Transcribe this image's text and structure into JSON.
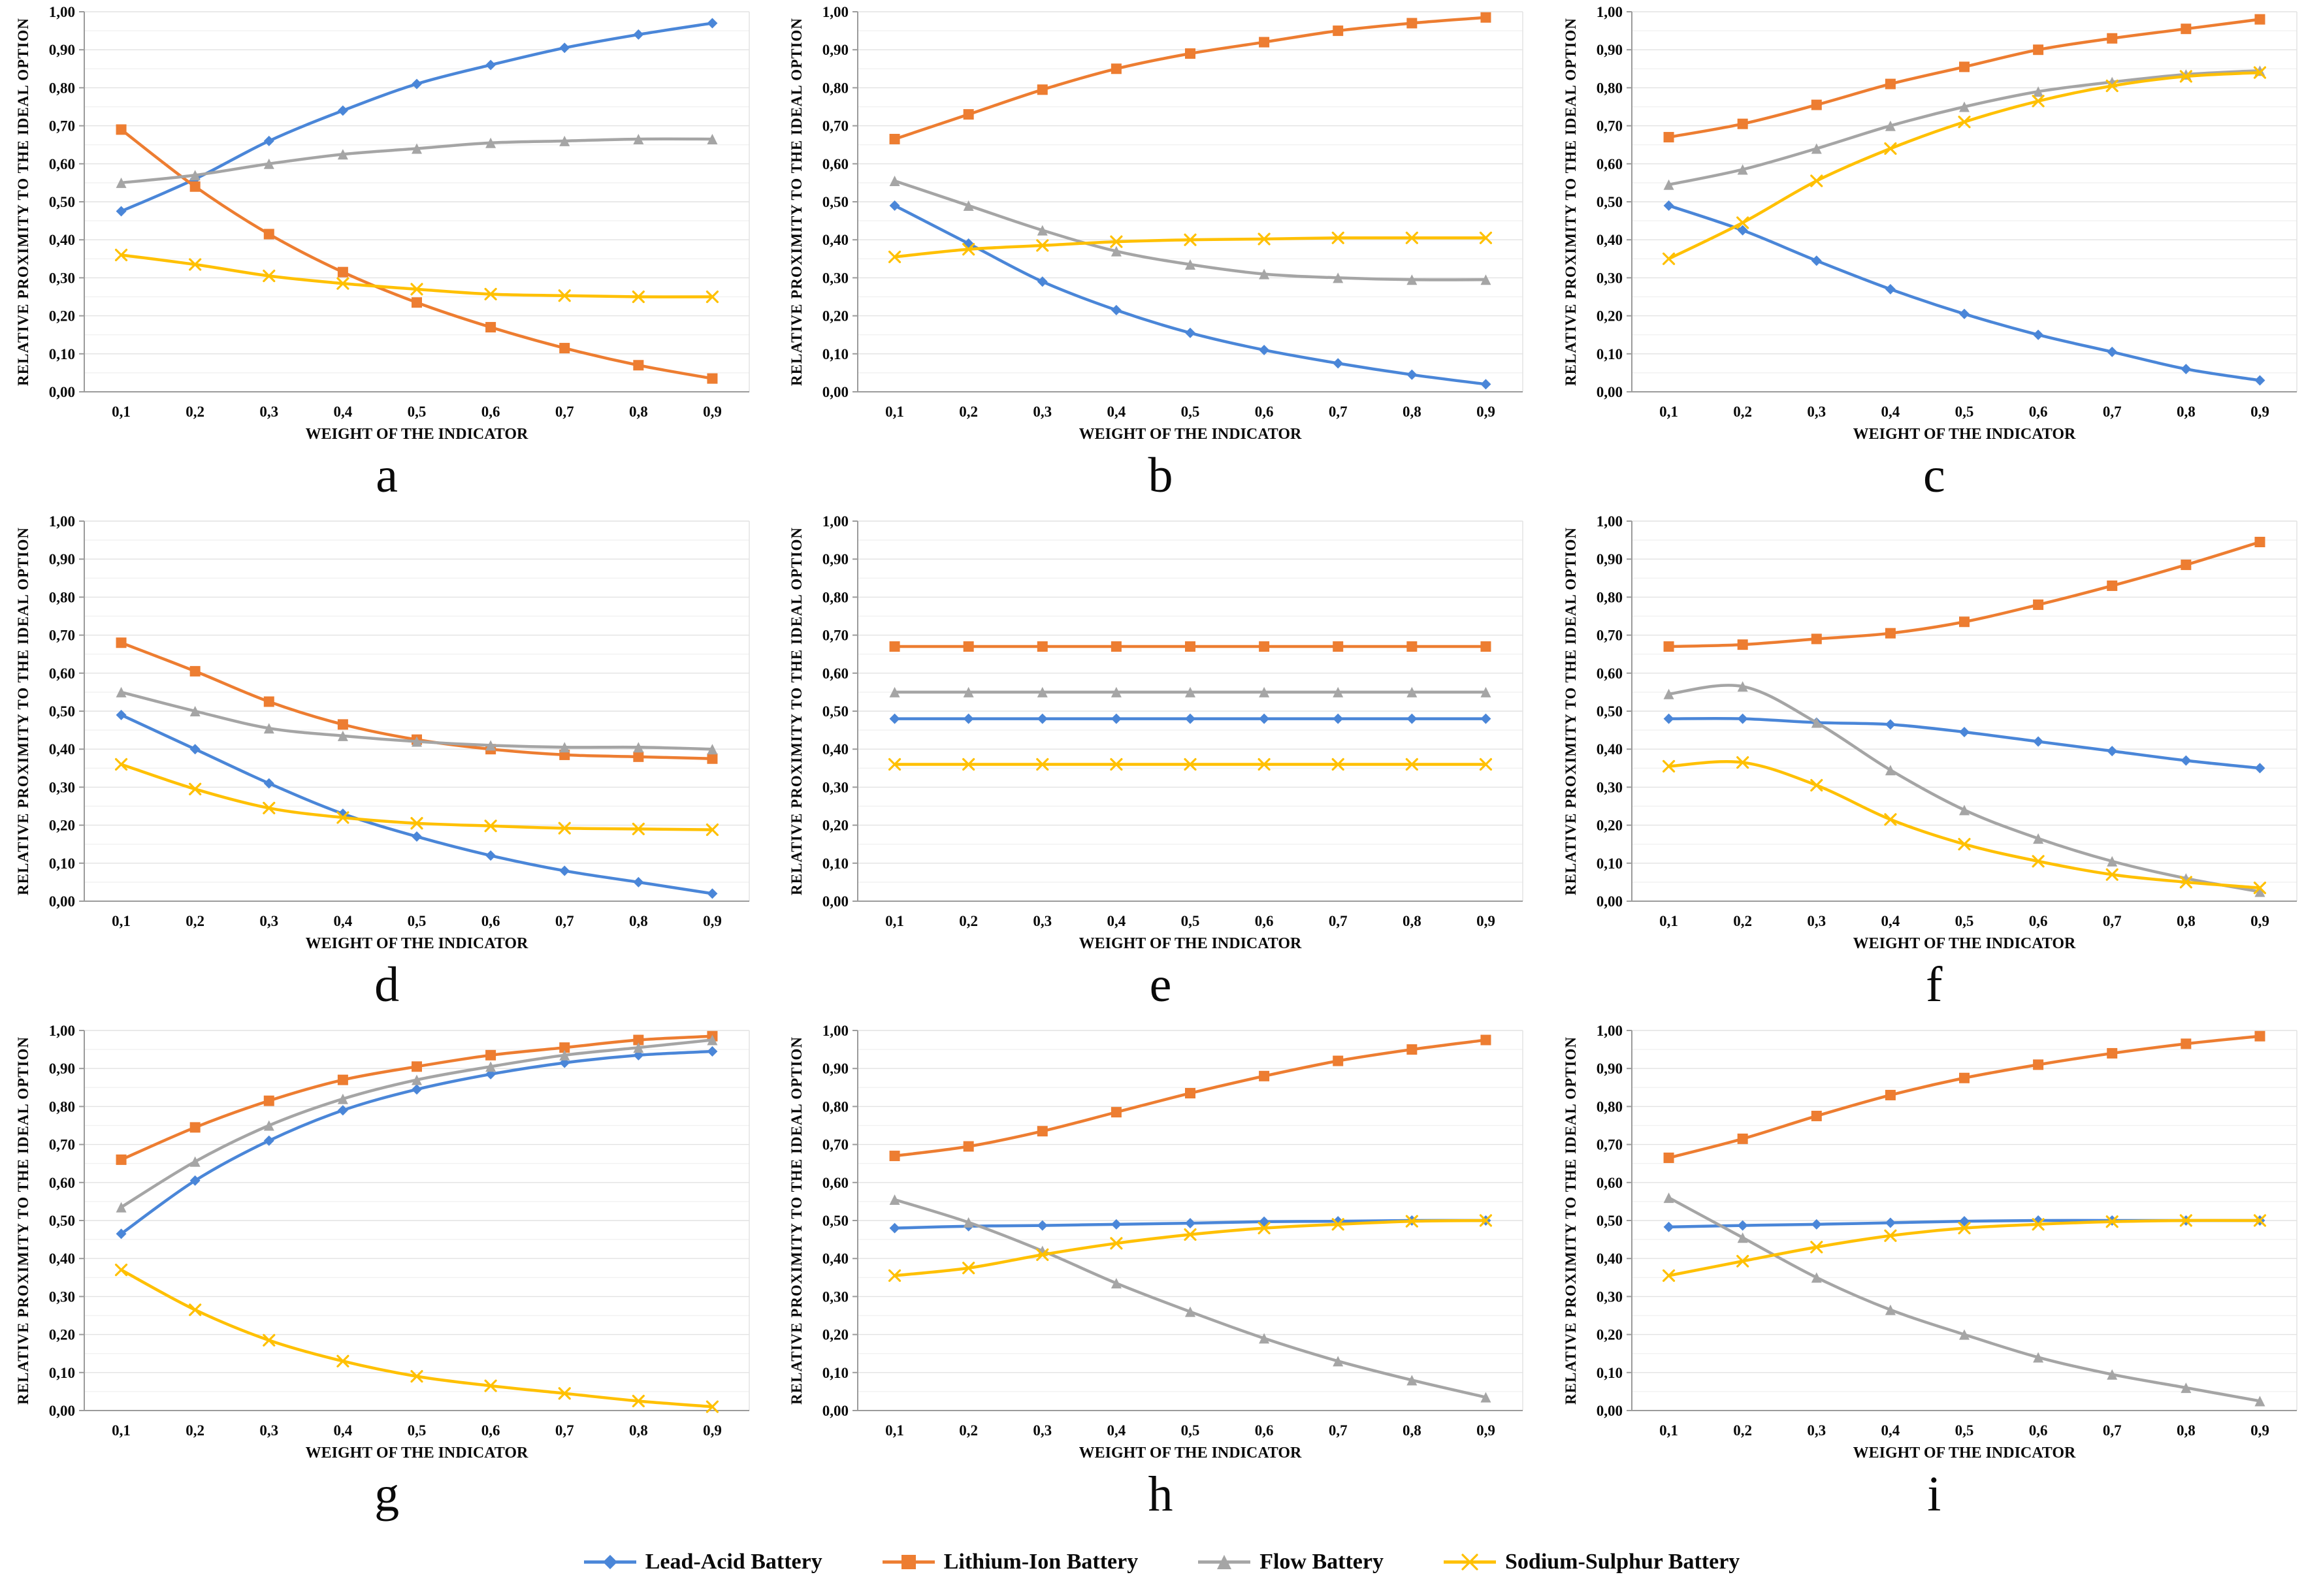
{
  "figure": {
    "background": "#ffffff",
    "grid_rows": 3,
    "grid_cols": 3
  },
  "axis": {
    "ylabel": "RELATIVE PROXIMITY TO THE IDEAL OPTION",
    "xlabel": "WEIGHT OF THE INDICATOR",
    "ylim": [
      0,
      1
    ],
    "ytick_step": 0.1,
    "yminor_step": 0.05,
    "ytick_labels": [
      "0,00",
      "0,10",
      "0,20",
      "0,30",
      "0,40",
      "0,50",
      "0,60",
      "0,70",
      "0,80",
      "0,90",
      "1,00"
    ],
    "xtick_labels": [
      "0,1",
      "0,2",
      "0,3",
      "0,4",
      "0,5",
      "0,6",
      "0,7",
      "0,8",
      "0,9"
    ],
    "grid_color_major": "#e2e2e2",
    "grid_color_minor": "#f1f1f1",
    "axis_color": "#9b9b9b",
    "right_border_color": "#e2e2e2"
  },
  "legend": {
    "items": [
      {
        "key": "lead-acid",
        "label": "Lead-Acid Battery",
        "color": "#4a86d8",
        "marker": "diamond"
      },
      {
        "key": "lithium-ion",
        "label": "Lithium-Ion Battery",
        "color": "#ed7d31",
        "marker": "square"
      },
      {
        "key": "flow",
        "label": "Flow Battery",
        "color": "#a5a5a5",
        "marker": "triangle"
      },
      {
        "key": "sodium-sulphur",
        "label": "Sodium-Sulphur Battery",
        "color": "#ffc000",
        "marker": "x"
      }
    ]
  },
  "chart_data": [
    {
      "type": "line",
      "label": "a",
      "xlabel": "WEIGHT OF THE INDICATOR",
      "ylabel": "RELATIVE PROXIMITY TO THE IDEAL OPTION",
      "x": [
        0.1,
        0.2,
        0.3,
        0.4,
        0.5,
        0.6,
        0.7,
        0.8,
        0.9
      ],
      "ylim": [
        0,
        1
      ],
      "series": [
        {
          "key": "lead-acid",
          "name": "Lead-Acid Battery",
          "values": [
            0.475,
            0.56,
            0.66,
            0.74,
            0.81,
            0.86,
            0.905,
            0.94,
            0.97
          ]
        },
        {
          "key": "lithium-ion",
          "name": "Lithium-Ion Battery",
          "values": [
            0.69,
            0.54,
            0.415,
            0.315,
            0.235,
            0.17,
            0.115,
            0.07,
            0.035
          ]
        },
        {
          "key": "flow",
          "name": "Flow Battery",
          "values": [
            0.55,
            0.57,
            0.6,
            0.625,
            0.64,
            0.655,
            0.66,
            0.665,
            0.665
          ]
        },
        {
          "key": "sodium-sulphur",
          "name": "Sodium-Sulphur Battery",
          "values": [
            0.36,
            0.335,
            0.305,
            0.285,
            0.27,
            0.257,
            0.253,
            0.25,
            0.25
          ]
        }
      ]
    },
    {
      "type": "line",
      "label": "b",
      "xlabel": "WEIGHT OF THE INDICATOR",
      "ylabel": "RELATIVE PROXIMITY TO THE IDEAL OPTION",
      "x": [
        0.1,
        0.2,
        0.3,
        0.4,
        0.5,
        0.6,
        0.7,
        0.8,
        0.9
      ],
      "ylim": [
        0,
        1
      ],
      "series": [
        {
          "key": "lead-acid",
          "name": "Lead-Acid Battery",
          "values": [
            0.49,
            0.39,
            0.29,
            0.215,
            0.155,
            0.11,
            0.075,
            0.045,
            0.02
          ]
        },
        {
          "key": "lithium-ion",
          "name": "Lithium-Ion Battery",
          "values": [
            0.665,
            0.73,
            0.795,
            0.85,
            0.89,
            0.92,
            0.95,
            0.97,
            0.985
          ]
        },
        {
          "key": "flow",
          "name": "Flow Battery",
          "values": [
            0.555,
            0.49,
            0.425,
            0.37,
            0.335,
            0.31,
            0.3,
            0.295,
            0.295
          ]
        },
        {
          "key": "sodium-sulphur",
          "name": "Sodium-Sulphur Battery",
          "values": [
            0.355,
            0.375,
            0.385,
            0.395,
            0.4,
            0.402,
            0.405,
            0.405,
            0.405
          ]
        }
      ]
    },
    {
      "type": "line",
      "label": "c",
      "xlabel": "WEIGHT OF THE INDICATOR",
      "ylabel": "RELATIVE PROXIMITY TO THE IDEAL OPTION",
      "x": [
        0.1,
        0.2,
        0.3,
        0.4,
        0.5,
        0.6,
        0.7,
        0.8,
        0.9
      ],
      "ylim": [
        0,
        1
      ],
      "series": [
        {
          "key": "lead-acid",
          "name": "Lead-Acid Battery",
          "values": [
            0.49,
            0.425,
            0.345,
            0.27,
            0.205,
            0.15,
            0.105,
            0.06,
            0.03
          ]
        },
        {
          "key": "lithium-ion",
          "name": "Lithium-Ion Battery",
          "values": [
            0.67,
            0.705,
            0.755,
            0.81,
            0.855,
            0.9,
            0.93,
            0.955,
            0.98
          ]
        },
        {
          "key": "flow",
          "name": "Flow Battery",
          "values": [
            0.545,
            0.585,
            0.64,
            0.7,
            0.75,
            0.79,
            0.815,
            0.835,
            0.845
          ]
        },
        {
          "key": "sodium-sulphur",
          "name": "Sodium-Sulphur Battery",
          "values": [
            0.35,
            0.445,
            0.555,
            0.64,
            0.71,
            0.765,
            0.805,
            0.83,
            0.84
          ]
        }
      ]
    },
    {
      "type": "line",
      "label": "d",
      "xlabel": "WEIGHT OF THE INDICATOR",
      "ylabel": "RELATIVE PROXIMITY TO THE IDEAL OPTION",
      "x": [
        0.1,
        0.2,
        0.3,
        0.4,
        0.5,
        0.6,
        0.7,
        0.8,
        0.9
      ],
      "ylim": [
        0,
        1
      ],
      "series": [
        {
          "key": "lead-acid",
          "name": "Lead-Acid Battery",
          "values": [
            0.49,
            0.4,
            0.31,
            0.23,
            0.17,
            0.12,
            0.08,
            0.05,
            0.02
          ]
        },
        {
          "key": "lithium-ion",
          "name": "Lithium-Ion Battery",
          "values": [
            0.68,
            0.605,
            0.525,
            0.465,
            0.425,
            0.4,
            0.385,
            0.38,
            0.375
          ]
        },
        {
          "key": "flow",
          "name": "Flow Battery",
          "values": [
            0.55,
            0.5,
            0.455,
            0.435,
            0.42,
            0.41,
            0.405,
            0.405,
            0.4
          ]
        },
        {
          "key": "sodium-sulphur",
          "name": "Sodium-Sulphur Battery",
          "values": [
            0.36,
            0.295,
            0.245,
            0.22,
            0.205,
            0.198,
            0.192,
            0.19,
            0.188
          ]
        }
      ]
    },
    {
      "type": "line",
      "label": "e",
      "xlabel": "WEIGHT OF THE INDICATOR",
      "ylabel": "RELATIVE PROXIMITY TO THE IDEAL OPTION",
      "x": [
        0.1,
        0.2,
        0.3,
        0.4,
        0.5,
        0.6,
        0.7,
        0.8,
        0.9
      ],
      "ylim": [
        0,
        1
      ],
      "series": [
        {
          "key": "lead-acid",
          "name": "Lead-Acid Battery",
          "values": [
            0.48,
            0.48,
            0.48,
            0.48,
            0.48,
            0.48,
            0.48,
            0.48,
            0.48
          ]
        },
        {
          "key": "lithium-ion",
          "name": "Lithium-Ion Battery",
          "values": [
            0.67,
            0.67,
            0.67,
            0.67,
            0.67,
            0.67,
            0.67,
            0.67,
            0.67
          ]
        },
        {
          "key": "flow",
          "name": "Flow Battery",
          "values": [
            0.55,
            0.55,
            0.55,
            0.55,
            0.55,
            0.55,
            0.55,
            0.55,
            0.55
          ]
        },
        {
          "key": "sodium-sulphur",
          "name": "Sodium-Sulphur Battery",
          "values": [
            0.36,
            0.36,
            0.36,
            0.36,
            0.36,
            0.36,
            0.36,
            0.36,
            0.36
          ]
        }
      ]
    },
    {
      "type": "line",
      "label": "f",
      "xlabel": "WEIGHT OF THE INDICATOR",
      "ylabel": "RELATIVE PROXIMITY TO THE IDEAL OPTION",
      "x": [
        0.1,
        0.2,
        0.3,
        0.4,
        0.5,
        0.6,
        0.7,
        0.8,
        0.9
      ],
      "ylim": [
        0,
        1
      ],
      "series": [
        {
          "key": "lead-acid",
          "name": "Lead-Acid Battery",
          "values": [
            0.48,
            0.48,
            0.47,
            0.465,
            0.445,
            0.42,
            0.395,
            0.37,
            0.35
          ]
        },
        {
          "key": "lithium-ion",
          "name": "Lithium-Ion Battery",
          "values": [
            0.67,
            0.675,
            0.69,
            0.705,
            0.735,
            0.78,
            0.83,
            0.885,
            0.945
          ]
        },
        {
          "key": "flow",
          "name": "Flow Battery",
          "values": [
            0.545,
            0.565,
            0.47,
            0.345,
            0.24,
            0.165,
            0.105,
            0.06,
            0.025
          ]
        },
        {
          "key": "sodium-sulphur",
          "name": "Sodium-Sulphur Battery",
          "values": [
            0.355,
            0.365,
            0.305,
            0.215,
            0.15,
            0.105,
            0.07,
            0.05,
            0.035
          ]
        }
      ]
    },
    {
      "type": "line",
      "label": "g",
      "xlabel": "WEIGHT OF THE INDICATOR",
      "ylabel": "RELATIVE PROXIMITY TO THE IDEAL OPTION",
      "x": [
        0.1,
        0.2,
        0.3,
        0.4,
        0.5,
        0.6,
        0.7,
        0.8,
        0.9
      ],
      "ylim": [
        0,
        1
      ],
      "series": [
        {
          "key": "lead-acid",
          "name": "Lead-Acid Battery",
          "values": [
            0.465,
            0.605,
            0.71,
            0.79,
            0.845,
            0.885,
            0.915,
            0.935,
            0.945
          ]
        },
        {
          "key": "lithium-ion",
          "name": "Lithium-Ion Battery",
          "values": [
            0.66,
            0.745,
            0.815,
            0.87,
            0.905,
            0.935,
            0.955,
            0.975,
            0.985
          ]
        },
        {
          "key": "flow",
          "name": "Flow Battery",
          "values": [
            0.535,
            0.655,
            0.75,
            0.82,
            0.87,
            0.905,
            0.935,
            0.955,
            0.975
          ]
        },
        {
          "key": "sodium-sulphur",
          "name": "Sodium-Sulphur Battery",
          "values": [
            0.37,
            0.265,
            0.185,
            0.13,
            0.09,
            0.065,
            0.045,
            0.025,
            0.01
          ]
        }
      ]
    },
    {
      "type": "line",
      "label": "h",
      "xlabel": "WEIGHT OF THE INDICATOR",
      "ylabel": "RELATIVE PROXIMITY TO THE IDEAL OPTION",
      "x": [
        0.1,
        0.2,
        0.3,
        0.4,
        0.5,
        0.6,
        0.7,
        0.8,
        0.9
      ],
      "ylim": [
        0,
        1
      ],
      "series": [
        {
          "key": "lead-acid",
          "name": "Lead-Acid Battery",
          "values": [
            0.48,
            0.485,
            0.487,
            0.49,
            0.493,
            0.497,
            0.498,
            0.5,
            0.5
          ]
        },
        {
          "key": "lithium-ion",
          "name": "Lithium-Ion Battery",
          "values": [
            0.67,
            0.695,
            0.735,
            0.785,
            0.835,
            0.88,
            0.92,
            0.95,
            0.975
          ]
        },
        {
          "key": "flow",
          "name": "Flow Battery",
          "values": [
            0.555,
            0.495,
            0.42,
            0.335,
            0.26,
            0.19,
            0.13,
            0.08,
            0.035
          ]
        },
        {
          "key": "sodium-sulphur",
          "name": "Sodium-Sulphur Battery",
          "values": [
            0.355,
            0.375,
            0.41,
            0.44,
            0.463,
            0.48,
            0.49,
            0.498,
            0.5
          ]
        }
      ]
    },
    {
      "type": "line",
      "label": "i",
      "xlabel": "WEIGHT OF THE INDICATOR",
      "ylabel": "RELATIVE PROXIMITY TO THE IDEAL OPTION",
      "x": [
        0.1,
        0.2,
        0.3,
        0.4,
        0.5,
        0.6,
        0.7,
        0.8,
        0.9
      ],
      "ylim": [
        0,
        1
      ],
      "series": [
        {
          "key": "lead-acid",
          "name": "Lead-Acid Battery",
          "values": [
            0.483,
            0.487,
            0.49,
            0.494,
            0.498,
            0.5,
            0.5,
            0.5,
            0.5
          ]
        },
        {
          "key": "lithium-ion",
          "name": "Lithium-Ion Battery",
          "values": [
            0.665,
            0.715,
            0.775,
            0.83,
            0.875,
            0.91,
            0.94,
            0.965,
            0.985
          ]
        },
        {
          "key": "flow",
          "name": "Flow Battery",
          "values": [
            0.56,
            0.455,
            0.35,
            0.265,
            0.2,
            0.14,
            0.095,
            0.06,
            0.025
          ]
        },
        {
          "key": "sodium-sulphur",
          "name": "Sodium-Sulphur Battery",
          "values": [
            0.355,
            0.393,
            0.43,
            0.46,
            0.48,
            0.49,
            0.497,
            0.5,
            0.5
          ]
        }
      ]
    }
  ]
}
